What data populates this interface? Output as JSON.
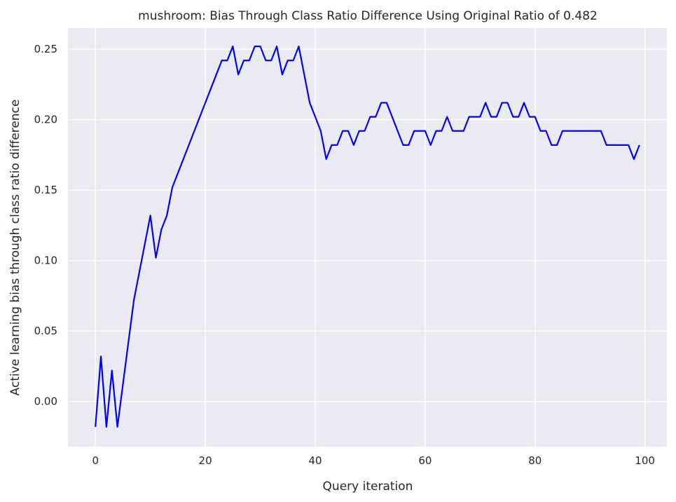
{
  "chart_data": {
    "type": "line",
    "title": "mushroom: Bias Through Class Ratio Difference Using Original Ratio of 0.482",
    "xlabel": "Query iteration",
    "ylabel": "Active learning bias through class ratio difference",
    "xlim": [
      -5,
      104
    ],
    "ylim": [
      -0.032,
      0.265
    ],
    "xticks": [
      0,
      20,
      40,
      60,
      80,
      100
    ],
    "xtick_labels": [
      "0",
      "20",
      "40",
      "60",
      "80",
      "100"
    ],
    "yticks": [
      0.0,
      0.05,
      0.1,
      0.15,
      0.2,
      0.25
    ],
    "ytick_labels": [
      "0.00",
      "0.05",
      "0.10",
      "0.15",
      "0.20",
      "0.25"
    ],
    "grid": true,
    "colors": {
      "background": "#eaeaf2",
      "line": "#0000ff",
      "grid": "#ffffff"
    },
    "series": [
      {
        "x": [
          0,
          1,
          2,
          3,
          4,
          5,
          6,
          7,
          8,
          9,
          10,
          11,
          12,
          13,
          14,
          15,
          16,
          17,
          18,
          19,
          20,
          21,
          22,
          23,
          24,
          25,
          26,
          27,
          28,
          29,
          30,
          31,
          32,
          33,
          34,
          35,
          36,
          37,
          38,
          39,
          40,
          41,
          42,
          43,
          44,
          45,
          46,
          47,
          48,
          49,
          50,
          51,
          52,
          53,
          54,
          55,
          56,
          57,
          58,
          59,
          60,
          61,
          62,
          63,
          64,
          65,
          66,
          67,
          68,
          69,
          70,
          71,
          72,
          73,
          74,
          75,
          76,
          77,
          78,
          79,
          80,
          81,
          82,
          83,
          84,
          85,
          86,
          87,
          88,
          89,
          90,
          91,
          92,
          93,
          94,
          95,
          96,
          97,
          98,
          99
        ],
        "values": [
          -0.018,
          0.032,
          -0.018,
          0.022,
          -0.018,
          0.012,
          0.042,
          0.072,
          0.092,
          0.112,
          0.132,
          0.102,
          0.122,
          0.132,
          0.152,
          0.162,
          0.172,
          0.182,
          0.192,
          0.202,
          0.212,
          0.222,
          0.232,
          0.242,
          0.242,
          0.252,
          0.232,
          0.242,
          0.242,
          0.252,
          0.252,
          0.242,
          0.242,
          0.252,
          0.232,
          0.242,
          0.242,
          0.252,
          0.232,
          0.212,
          0.202,
          0.192,
          0.172,
          0.182,
          0.182,
          0.192,
          0.192,
          0.182,
          0.192,
          0.192,
          0.202,
          0.202,
          0.212,
          0.212,
          0.202,
          0.192,
          0.182,
          0.182,
          0.192,
          0.192,
          0.192,
          0.182,
          0.192,
          0.192,
          0.202,
          0.192,
          0.192,
          0.192,
          0.202,
          0.202,
          0.202,
          0.212,
          0.202,
          0.202,
          0.212,
          0.212,
          0.202,
          0.202,
          0.212,
          0.202,
          0.202,
          0.192,
          0.192,
          0.182,
          0.182,
          0.192,
          0.192,
          0.192,
          0.192,
          0.192,
          0.192,
          0.192,
          0.192,
          0.182,
          0.182,
          0.182,
          0.182,
          0.182,
          0.172,
          0.182
        ]
      }
    ]
  }
}
